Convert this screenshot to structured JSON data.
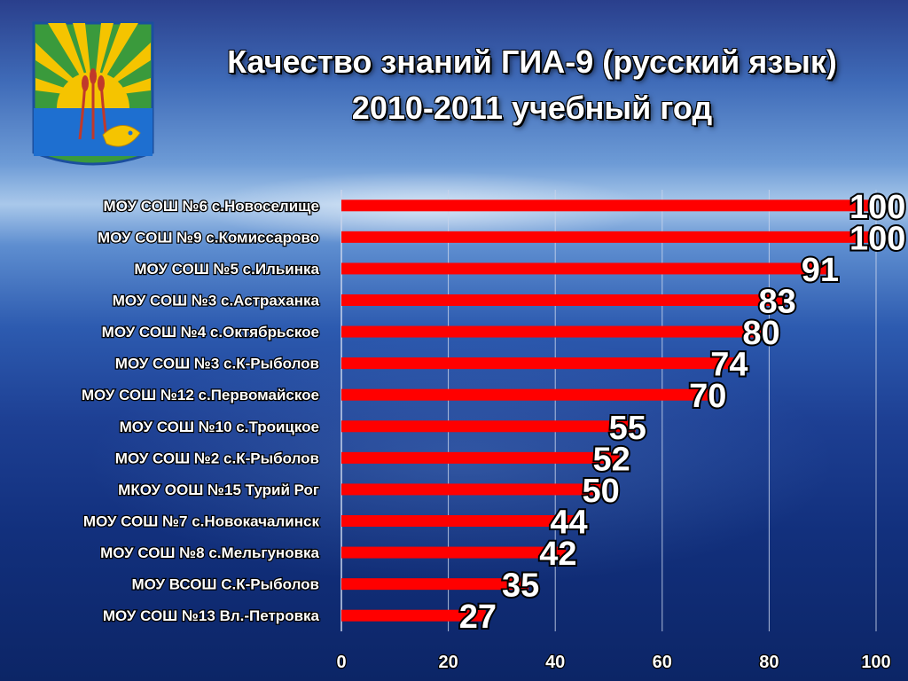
{
  "colors": {
    "bar": "#ff0000",
    "grid": "#c8d4ec",
    "emblem_field": "#3a9a3c",
    "emblem_sun": "#f5c400",
    "emblem_water": "#1e6fd0"
  },
  "icons": {
    "emblem": "coat-of-arms-icon"
  },
  "chart_data": {
    "type": "bar",
    "orientation": "horizontal",
    "title": "Качество знаний ГИА-9 (русский язык)",
    "subtitle": "2010-2011 учебный год",
    "categories": [
      "МОУ СОШ №6 с.Новоселище",
      "МОУ СОШ №9 с.Комиссарово",
      "МОУ СОШ №5 с.Ильинка",
      "МОУ СОШ №3 с.Астраханка",
      "МОУ СОШ №4 с.Октябрьское",
      "МОУ СОШ №3 с.К-Рыболов",
      "МОУ СОШ №12 с.Первомайское",
      "МОУ СОШ №10 с.Троицкое",
      "МОУ СОШ №2 с.К-Рыболов",
      "МКОУ ООШ №15 Турий Рог",
      "МОУ СОШ №7 с.Новокачалинск",
      "МОУ СОШ №8 с.Мельгуновка",
      "МОУ ВСОШ С.К-Рыболов",
      "МОУ СОШ №13 Вл.-Петровка"
    ],
    "values": [
      100,
      100,
      91,
      83,
      80,
      74,
      70,
      55,
      52,
      50,
      44,
      42,
      35,
      27
    ],
    "xlim": [
      0,
      100
    ],
    "xticks": [
      0,
      20,
      40,
      60,
      80,
      100
    ],
    "grid": true,
    "data_labels": true,
    "legend": "none"
  }
}
